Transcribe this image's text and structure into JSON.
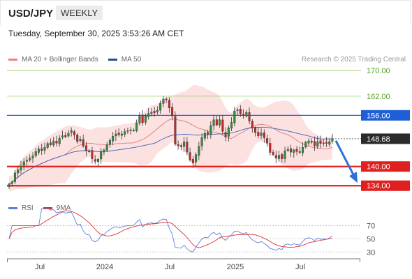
{
  "header": {
    "symbol": "USD/JPY",
    "timeframe": "WEEKLY",
    "datetime": "Tuesday, September 30, 2025 3:53:26 AM CET",
    "copyright": "Research © 2025 Trading Central"
  },
  "legend": [
    {
      "label": "MA 20 + Bollinger Bands",
      "color": "#f08080"
    },
    {
      "label": "MA 50",
      "color": "#1f4e9c"
    }
  ],
  "rsi_legend": [
    {
      "label": "RSI",
      "color": "#5b7fdc"
    },
    {
      "label": "9MA",
      "color": "#e03030"
    }
  ],
  "chart_data": [
    {
      "type": "candlestick",
      "title": "USD/JPY",
      "ylim": [
        131,
        172
      ],
      "x_tick_labels": [
        "Jul",
        "2024",
        "Jul",
        "2025",
        "Jul"
      ],
      "current_price": {
        "label": "148.68",
        "value": 148.68
      },
      "levels": [
        {
          "label": "170.00",
          "value": 170.0,
          "kind": "target"
        },
        {
          "label": "162.00",
          "value": 162.0,
          "kind": "target"
        },
        {
          "label": "156.00",
          "value": 156.0,
          "kind": "resistance"
        },
        {
          "label": "140.00",
          "value": 140.0,
          "kind": "support"
        },
        {
          "label": "134.00",
          "value": 134.0,
          "kind": "support"
        }
      ],
      "closes": [
        134.5,
        135.2,
        138.0,
        139.0,
        140.2,
        141.5,
        142.0,
        142.6,
        143.3,
        144.7,
        145.5,
        145.0,
        146.0,
        147.2,
        146.8,
        148.0,
        147.3,
        148.8,
        149.6,
        149.3,
        150.4,
        151.2,
        149.8,
        147.8,
        148.6,
        146.4,
        145.0,
        144.8,
        142.4,
        141.6,
        142.3,
        144.6,
        145.2,
        146.8,
        148.2,
        149.5,
        150.2,
        149.9,
        150.2,
        150.9,
        151.2,
        151.3,
        151.4,
        153.6,
        155.9,
        153.7,
        155.8,
        156.6,
        157.0,
        156.8,
        157.6,
        159.8,
        161.1,
        161.0,
        158.3,
        155.8,
        147.0,
        146.5,
        146.2,
        147.7,
        144.5,
        142.0,
        141.1,
        143.7,
        146.3,
        149.1,
        150.4,
        150.1,
        152.8,
        154.6,
        153.0,
        154.6,
        151.0,
        149.3,
        152.1,
        153.8,
        157.3,
        157.7,
        156.5,
        156.0,
        156.9,
        154.2,
        152.0,
        150.6,
        149.6,
        150.5,
        149.0,
        147.3,
        144.4,
        143.7,
        142.6,
        143.5,
        142.4,
        144.9,
        145.4,
        144.5,
        145.2,
        144.7,
        144.4,
        146.0,
        147.6,
        148.0,
        147.6,
        146.5,
        147.8,
        147.2,
        147.4,
        147.2,
        147.8,
        148.7
      ],
      "indicators": [
        "MA 20 + Bollinger Bands",
        "MA 50"
      ]
    },
    {
      "type": "line",
      "title": "RSI",
      "ylim": [
        25,
        80
      ],
      "y_ticks": [
        {
          "label": "70",
          "value": 70
        },
        {
          "label": "50",
          "value": 50
        },
        {
          "label": "30",
          "value": 30
        }
      ],
      "series": [
        {
          "name": "RSI",
          "color": "#5b7fdc"
        },
        {
          "name": "9MA",
          "color": "#e03030"
        }
      ]
    }
  ]
}
